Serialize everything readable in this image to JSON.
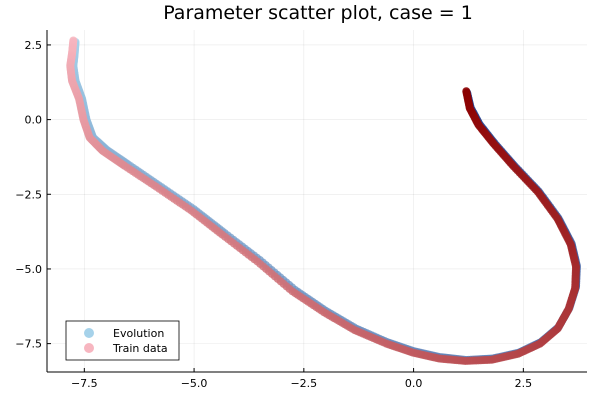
{
  "chart_data": {
    "type": "scatter",
    "title": "Parameter scatter plot, case = 1",
    "xlabel": "",
    "ylabel": "",
    "xlim": [
      -8.35,
      3.95
    ],
    "ylim": [
      -8.45,
      3.0
    ],
    "grid": true,
    "legend_position": "bottom-left",
    "x_ticks": [
      -7.5,
      -5.0,
      -2.5,
      0.0,
      2.5
    ],
    "x_tick_labels": [
      "−7.5",
      "−5.0",
      "−2.5",
      "0.0",
      "2.5"
    ],
    "y_ticks": [
      -7.5,
      -5.0,
      -2.5,
      0.0,
      2.5
    ],
    "y_tick_labels": [
      "−7.5",
      "−5.0",
      "−2.5",
      "0.0",
      "2.5"
    ],
    "series": [
      {
        "name": "Evolution",
        "color_start": "#a6d2ea",
        "color_end": "#1f3b8c",
        "x": [
          -7.7,
          -7.72,
          -7.75,
          -7.7,
          -7.55,
          -7.45,
          -7.3,
          -7.0,
          -6.5,
          -5.8,
          -5.0,
          -4.3,
          -3.5,
          -2.7,
          -2.0,
          -1.3,
          -0.6,
          0.0,
          0.6,
          1.2,
          1.8,
          2.4,
          2.9,
          3.3,
          3.55,
          3.7,
          3.72,
          3.6,
          3.3,
          2.85,
          2.3,
          1.85,
          1.5,
          1.3,
          1.22
        ],
        "y": [
          2.6,
          2.2,
          1.8,
          1.3,
          0.7,
          0.0,
          -0.6,
          -1.0,
          -1.5,
          -2.2,
          -3.0,
          -3.8,
          -4.7,
          -5.7,
          -6.4,
          -7.0,
          -7.45,
          -7.75,
          -7.95,
          -8.05,
          -8.0,
          -7.8,
          -7.45,
          -6.95,
          -6.3,
          -5.6,
          -4.9,
          -4.15,
          -3.3,
          -2.4,
          -1.55,
          -0.8,
          -0.15,
          0.4,
          0.9
        ]
      },
      {
        "name": "Train data",
        "color_start": "#f7b6c0",
        "color_end": "#8b0000",
        "x": [
          -7.75,
          -7.78,
          -7.82,
          -7.78,
          -7.62,
          -7.52,
          -7.38,
          -7.08,
          -6.58,
          -5.86,
          -5.06,
          -4.36,
          -3.56,
          -2.76,
          -2.04,
          -1.34,
          -0.62,
          -0.02,
          0.58,
          1.18,
          1.78,
          2.38,
          2.88,
          3.28,
          3.53,
          3.68,
          3.7,
          3.58,
          3.28,
          2.83,
          2.28,
          1.83,
          1.48,
          1.28,
          1.2
        ],
        "y": [
          2.65,
          2.2,
          1.8,
          1.3,
          0.7,
          0.0,
          -0.6,
          -1.05,
          -1.55,
          -2.25,
          -3.05,
          -3.85,
          -4.75,
          -5.75,
          -6.45,
          -7.05,
          -7.5,
          -7.8,
          -8.0,
          -8.08,
          -8.04,
          -7.84,
          -7.5,
          -7.0,
          -6.35,
          -5.65,
          -4.92,
          -4.18,
          -3.32,
          -2.42,
          -1.57,
          -0.82,
          -0.18,
          0.38,
          0.95
        ]
      }
    ]
  }
}
